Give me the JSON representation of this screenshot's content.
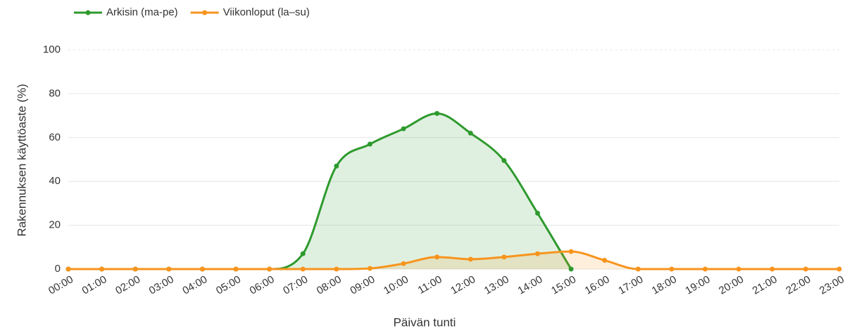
{
  "chart_data": {
    "type": "line",
    "xlabel": "Päivän tunti",
    "ylabel": "Rakennuksen käyttöaste (%)",
    "categories": [
      "00:00",
      "01:00",
      "02:00",
      "03:00",
      "04:00",
      "05:00",
      "06:00",
      "07:00",
      "08:00",
      "09:00",
      "10:00",
      "11:00",
      "12:00",
      "13:00",
      "14:00",
      "15:00",
      "16:00",
      "17:00",
      "18:00",
      "19:00",
      "20:00",
      "21:00",
      "22:00",
      "23:00"
    ],
    "series": [
      {
        "name": "Arkisin (ma-pe)",
        "color": "#2e9a2e",
        "fill": "rgba(46,154,46,0.15)",
        "values": [
          0,
          0,
          0,
          0,
          0,
          0,
          0,
          7,
          47,
          57,
          64,
          71,
          62,
          49.5,
          25.5,
          0,
          null,
          null,
          null,
          null,
          null,
          null,
          null,
          null
        ]
      },
      {
        "name": "Viikonloput (la–su)",
        "color": "#f7941d",
        "fill": "rgba(247,148,29,0.15)",
        "values": [
          0,
          0,
          0,
          0,
          0,
          0,
          0,
          0,
          0,
          0.3,
          2.5,
          5.5,
          4.5,
          5.5,
          7,
          8,
          4,
          0,
          0,
          0,
          0,
          0,
          0,
          0
        ]
      }
    ],
    "ylim": [
      0,
      100
    ],
    "yticks": [
      0,
      20,
      40,
      60,
      80,
      100
    ],
    "grid": true
  }
}
